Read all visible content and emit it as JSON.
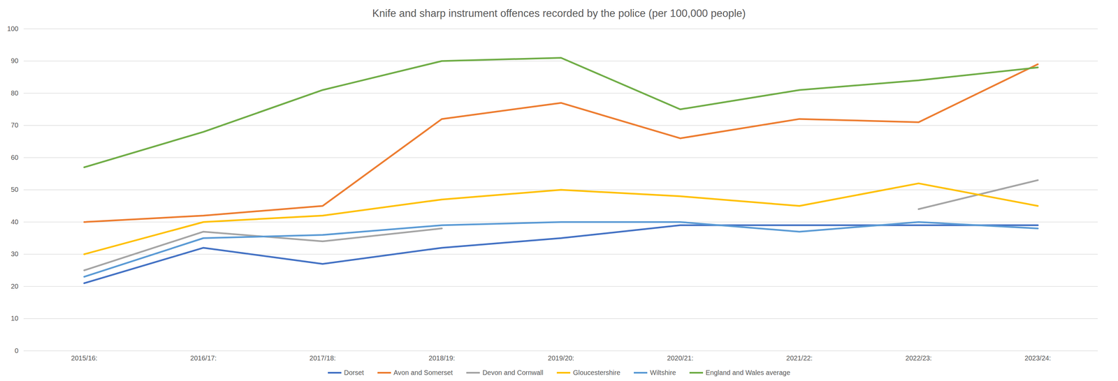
{
  "chart_data": {
    "type": "line",
    "title": "Knife and sharp instrument offences recorded by the police (per 100,000 people)",
    "categories": [
      "2015/16:",
      "2016/17:",
      "2017/18:",
      "2018/19:",
      "2019/20:",
      "2020/21:",
      "2021/22:",
      "2022/23:",
      "2023/24:"
    ],
    "series": [
      {
        "name": "Dorset",
        "color": "#4472c4",
        "values": [
          21,
          32,
          27,
          32,
          35,
          39,
          39,
          39,
          39
        ]
      },
      {
        "name": "Avon and Somerset",
        "color": "#ed7d31",
        "values": [
          40,
          42,
          45,
          72,
          77,
          66,
          72,
          71,
          89
        ]
      },
      {
        "name": "Devon and Cornwall",
        "color": "#a5a5a5",
        "values": [
          25,
          37,
          34,
          38,
          null,
          null,
          null,
          44,
          53
        ]
      },
      {
        "name": "Gloucestershire",
        "color": "#ffc000",
        "values": [
          30,
          40,
          42,
          47,
          50,
          48,
          45,
          52,
          45
        ]
      },
      {
        "name": "Wiltshire",
        "color": "#5b9bd5",
        "values": [
          23,
          35,
          36,
          39,
          40,
          40,
          37,
          40,
          38
        ]
      },
      {
        "name": "England and Wales average",
        "color": "#70ad47",
        "values": [
          57,
          68,
          81,
          90,
          91,
          75,
          81,
          84,
          88
        ]
      }
    ],
    "ylim": [
      0,
      100
    ],
    "yticks": [
      0,
      10,
      20,
      30,
      40,
      50,
      60,
      70,
      80,
      90,
      100
    ],
    "grid": true,
    "legend": "bottom"
  }
}
